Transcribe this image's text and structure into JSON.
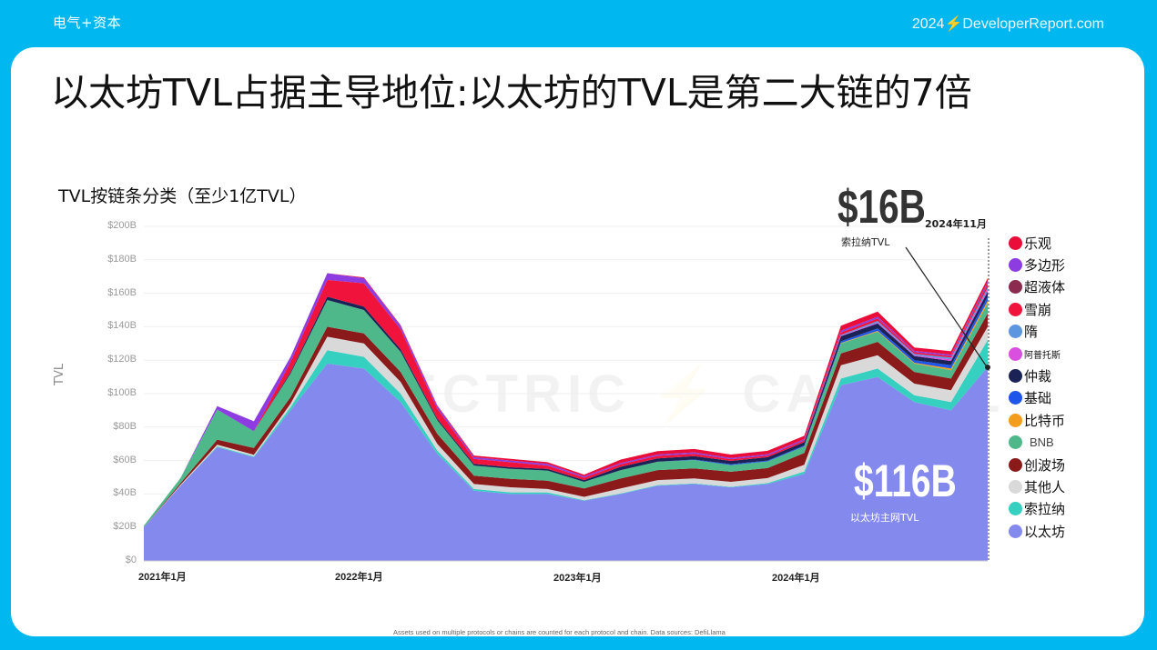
{
  "header": {
    "brand": "电气+资本",
    "site": "2024⚡DeveloperReport.com"
  },
  "slide": {
    "title": "以太坊TVL占据主导地位:以太坊的TVL是第二大链的7倍",
    "footnote": "Assets used on multiple protocols or chains are counted for each protocol and chain. Data sources: DefiLlama",
    "watermark": "ELECTRIC ⚡ CAPITAL"
  },
  "annotations": {
    "solana_value": "$16B",
    "solana_label": "索拉纳TVL",
    "date_label": "2024年11月",
    "eth_value": "$116B",
    "eth_label": "以太坊主网TVL"
  },
  "colors": {
    "header_bg": "#00b8ef",
    "card_bg": "#ffffff"
  },
  "chart_data": {
    "type": "area",
    "stacked": true,
    "title": "TVL按链条分类（至少1亿TVL）",
    "xlabel": "",
    "ylabel": "TVL",
    "ylim": [
      0,
      200
    ],
    "y_unit": "$B",
    "grid": true,
    "legend_position": "right",
    "y_ticks": [
      "$0",
      "$20B",
      "$40B",
      "$60B",
      "$80B",
      "$100B",
      "$120B",
      "$140B",
      "$160B",
      "$180B",
      "$200B"
    ],
    "x_ticks": [
      "2021年1月",
      "2022年1月",
      "2023年1月",
      "2024年1月"
    ],
    "x": [
      "2021-01",
      "2021-03",
      "2021-05",
      "2021-07",
      "2021-09",
      "2021-11",
      "2022-01",
      "2022-03",
      "2022-05",
      "2022-07",
      "2022-09",
      "2022-11",
      "2023-01",
      "2023-03",
      "2023-05",
      "2023-07",
      "2023-09",
      "2023-11",
      "2024-01",
      "2024-03",
      "2024-05",
      "2024-07",
      "2024-09",
      "2024-11"
    ],
    "series": [
      {
        "name": "以太坊",
        "color": "#8489ee",
        "values": [
          20,
          45,
          68,
          62,
          90,
          118,
          115,
          95,
          64,
          42,
          40,
          40,
          36,
          40,
          45,
          46,
          44,
          46,
          52,
          105,
          110,
          95,
          90,
          116
        ]
      },
      {
        "name": "索拉纳",
        "color": "#35d0c0",
        "values": [
          0,
          0,
          0.5,
          0.5,
          2,
          8,
          7,
          5,
          2,
          1,
          1,
          1,
          0.3,
          0.3,
          0.3,
          0.3,
          0.3,
          0.5,
          1.5,
          4,
          5,
          4,
          5,
          16
        ]
      },
      {
        "name": "其他人",
        "color": "#d9d9d9",
        "values": [
          0,
          0.5,
          1,
          1,
          2,
          8,
          8,
          7,
          4,
          3,
          3,
          2,
          2,
          3,
          3,
          3,
          3,
          3,
          4,
          8,
          8,
          7,
          7,
          8
        ]
      },
      {
        "name": "创波场",
        "color": "#8b1a1a",
        "values": [
          0,
          1,
          3,
          4,
          4,
          6,
          6,
          6,
          6,
          5,
          5,
          5,
          5,
          6,
          6,
          6,
          6,
          6,
          7,
          7,
          8,
          7,
          7,
          8
        ]
      },
      {
        "name": "BNB",
        "color": "#4eb88a",
        "values": [
          1,
          3,
          18,
          10,
          14,
          16,
          14,
          12,
          8,
          6,
          6,
          6,
          4,
          5,
          5,
          5,
          4,
          4,
          4,
          6,
          6,
          5,
          5,
          6
        ]
      },
      {
        "name": "比特币",
        "color": "#f39c1e",
        "values": [
          0,
          0,
          0,
          0,
          0,
          0,
          0,
          0,
          0,
          0,
          0,
          0,
          0,
          0,
          0,
          0,
          0,
          0,
          0,
          0.3,
          0.5,
          0.5,
          1,
          1.5
        ]
      },
      {
        "name": "基础",
        "color": "#1d56e8",
        "values": [
          0,
          0,
          0,
          0,
          0,
          0,
          0,
          0,
          0,
          0,
          0,
          0,
          0,
          0,
          0,
          0.3,
          0.5,
          0.5,
          0.5,
          1,
          1.5,
          1.5,
          2,
          2.5
        ]
      },
      {
        "name": "仲裁",
        "color": "#1b2356",
        "values": [
          0,
          0,
          0,
          0,
          1,
          2,
          2,
          1.5,
          1,
          1,
          1,
          1,
          1,
          2,
          2,
          2,
          2,
          2,
          2,
          3,
          3,
          2.5,
          2.5,
          3
        ]
      },
      {
        "name": "阿普托斯",
        "color": "#d94fe0",
        "values": [
          0,
          0,
          0,
          0,
          0,
          0,
          0,
          0,
          0,
          0,
          0,
          0,
          0,
          0,
          0,
          0,
          0,
          0,
          0,
          0.3,
          0.5,
          0.5,
          1,
          1
        ]
      },
      {
        "name": "隋",
        "color": "#5c95e0",
        "values": [
          0,
          0,
          0,
          0,
          0,
          0,
          0,
          0,
          0,
          0,
          0,
          0,
          0,
          0,
          0,
          0,
          0,
          0,
          0,
          0.5,
          1,
          0.8,
          1,
          1.5
        ]
      },
      {
        "name": "雪崩",
        "color": "#f0143c",
        "values": [
          0,
          0,
          0,
          0,
          6,
          10,
          14,
          12,
          6,
          3,
          3,
          2,
          1.5,
          1.5,
          1.5,
          1.5,
          1,
          1,
          1,
          1.5,
          1.5,
          1,
          1,
          1.5
        ]
      },
      {
        "name": "超液体",
        "color": "#8c2a50",
        "values": [
          0,
          0,
          0,
          0,
          0,
          0,
          0,
          0,
          0,
          0,
          0,
          0,
          0,
          0,
          0,
          0,
          0,
          0,
          0,
          0,
          0,
          0,
          0,
          1
        ]
      },
      {
        "name": "多边形",
        "color": "#8c3ce0",
        "values": [
          0,
          0,
          2,
          6,
          3,
          4,
          3,
          2,
          1.5,
          1,
          1,
          1,
          0.8,
          0.8,
          0.8,
          0.8,
          0.8,
          0.8,
          0.8,
          1,
          1,
          0.8,
          0.8,
          1
        ]
      },
      {
        "name": "乐观",
        "color": "#ea0d3a",
        "values": [
          0,
          0,
          0,
          0,
          0,
          0,
          0.5,
          0.5,
          0.5,
          1,
          1,
          1,
          1,
          2,
          2,
          2,
          2,
          2,
          2,
          3,
          3,
          2,
          2,
          2
        ]
      }
    ]
  },
  "legend": [
    {
      "label": "乐观",
      "color": "#ea0d3a"
    },
    {
      "label": "多边形",
      "color": "#8c3ce0"
    },
    {
      "label": "超液体",
      "color": "#8c2a50"
    },
    {
      "label": "雪崩",
      "color": "#f0143c"
    },
    {
      "label": "隋",
      "color": "#5c95e0"
    },
    {
      "label": "阿普托斯",
      "color": "#d94fe0"
    },
    {
      "label": "仲裁",
      "color": "#1b2356"
    },
    {
      "label": "基础",
      "color": "#1d56e8"
    },
    {
      "label": "比特币",
      "color": "#f39c1e"
    },
    {
      "label": "BNB",
      "color": "#4eb88a"
    },
    {
      "label": "创波场",
      "color": "#8b1a1a"
    },
    {
      "label": "其他人",
      "color": "#d9d9d9"
    },
    {
      "label": "索拉纳",
      "color": "#35d0c0"
    },
    {
      "label": "以太坊",
      "color": "#8489ee"
    }
  ]
}
